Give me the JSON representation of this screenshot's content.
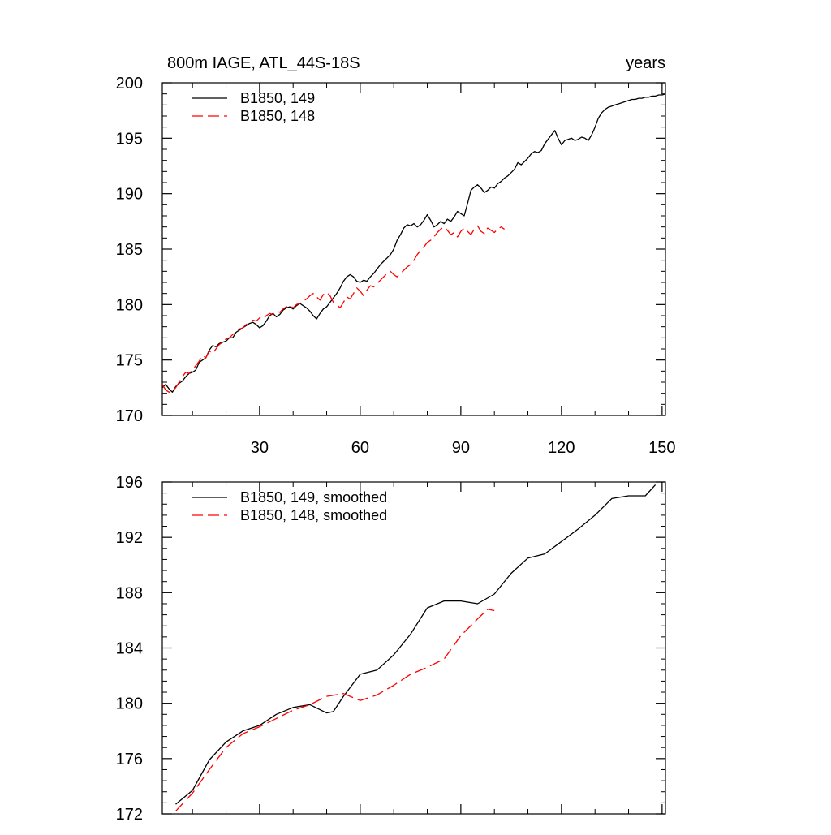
{
  "title_left": "800m IAGE, ATL_44S-18S",
  "title_right": "years",
  "colors": {
    "series_149": "#000000",
    "series_148": "#ff0000"
  },
  "chart_data": [
    {
      "type": "line",
      "xlabel": "",
      "ylabel": "",
      "xlim": [
        1,
        151
      ],
      "ylim": [
        170,
        200
      ],
      "xticks": [
        30,
        60,
        90,
        120,
        150
      ],
      "yticks": [
        170,
        175,
        180,
        185,
        190,
        195,
        200
      ],
      "grid": false,
      "legend_position": "top-left",
      "series": [
        {
          "name": "B1850, 149",
          "style": "solid",
          "x": [
            1,
            2,
            3,
            4,
            5,
            6,
            7,
            8,
            9,
            10,
            11,
            12,
            13,
            14,
            15,
            16,
            17,
            18,
            19,
            20,
            21,
            22,
            23,
            24,
            25,
            26,
            27,
            28,
            29,
            30,
            31,
            32,
            33,
            34,
            35,
            36,
            37,
            38,
            39,
            40,
            41,
            42,
            43,
            44,
            45,
            46,
            47,
            48,
            49,
            50,
            51,
            52,
            53,
            54,
            55,
            56,
            57,
            58,
            59,
            60,
            61,
            62,
            63,
            64,
            65,
            66,
            67,
            68,
            69,
            70,
            71,
            72,
            73,
            74,
            75,
            76,
            77,
            78,
            79,
            80,
            81,
            82,
            83,
            84,
            85,
            86,
            87,
            88,
            89,
            90,
            91,
            92,
            93,
            94,
            95,
            96,
            97,
            98,
            99,
            100,
            101,
            102,
            103,
            104,
            105,
            106,
            107,
            108,
            109,
            110,
            111,
            112,
            113,
            114,
            115,
            116,
            117,
            118,
            119,
            120,
            121,
            122,
            123,
            124,
            125,
            126,
            127,
            128,
            129,
            130,
            131,
            132,
            133,
            134,
            135,
            136,
            137,
            138,
            139,
            140,
            141,
            142,
            143,
            144,
            145,
            146,
            147,
            148,
            149,
            150,
            151
          ],
          "values": [
            172.5,
            172.8,
            172.4,
            172.1,
            172.6,
            172.9,
            173.1,
            173.5,
            173.8,
            173.9,
            174.1,
            174.8,
            175.0,
            175.2,
            175.9,
            176.3,
            176.2,
            176.5,
            176.6,
            176.7,
            177.0,
            177.0,
            177.5,
            177.7,
            177.9,
            178.1,
            178.3,
            178.4,
            178.2,
            177.9,
            178.1,
            178.5,
            179.0,
            179.2,
            178.9,
            179.1,
            179.5,
            179.7,
            179.8,
            179.6,
            179.9,
            180.1,
            179.9,
            179.7,
            179.4,
            179.0,
            178.7,
            179.2,
            179.6,
            179.8,
            180.2,
            180.6,
            181.0,
            181.5,
            182.1,
            182.5,
            182.7,
            182.5,
            182.1,
            182.0,
            182.2,
            182.1,
            182.5,
            182.8,
            183.2,
            183.6,
            183.9,
            184.2,
            184.5,
            185.0,
            185.8,
            186.3,
            186.9,
            187.2,
            187.1,
            187.3,
            187.0,
            187.2,
            187.6,
            188.1,
            187.6,
            187.0,
            187.2,
            187.5,
            187.3,
            187.7,
            187.5,
            187.9,
            188.4,
            188.2,
            188.0,
            189.1,
            190.3,
            190.6,
            190.8,
            190.5,
            190.1,
            190.3,
            190.6,
            190.5,
            190.9,
            191.1,
            191.4,
            191.6,
            191.9,
            192.2,
            192.8,
            192.6,
            192.9,
            193.2,
            193.6,
            193.8,
            193.7,
            193.9,
            194.5,
            194.9,
            195.3,
            195.7,
            195.0,
            194.4,
            194.8,
            194.9,
            195.0,
            194.8,
            194.9,
            195.1,
            195.0,
            194.8,
            195.3,
            196.0,
            196.8,
            197.3,
            197.6,
            197.8,
            197.9,
            198.0,
            198.1,
            198.2,
            198.3,
            198.4,
            198.5,
            198.5,
            198.6,
            198.6,
            198.7,
            198.7,
            198.8,
            198.8,
            198.9,
            198.9,
            199.0
          ]
        },
        {
          "name": "B1850, 148",
          "style": "dashed",
          "x": [
            1,
            2,
            3,
            4,
            5,
            6,
            7,
            8,
            9,
            10,
            11,
            12,
            13,
            14,
            15,
            16,
            17,
            18,
            19,
            20,
            21,
            22,
            23,
            24,
            25,
            26,
            27,
            28,
            29,
            30,
            31,
            32,
            33,
            34,
            35,
            36,
            37,
            38,
            39,
            40,
            41,
            42,
            43,
            44,
            45,
            46,
            47,
            48,
            49,
            50,
            51,
            52,
            53,
            54,
            55,
            56,
            57,
            58,
            59,
            60,
            61,
            62,
            63,
            64,
            65,
            66,
            67,
            68,
            69,
            70,
            71,
            72,
            73,
            74,
            75,
            76,
            77,
            78,
            79,
            80,
            81,
            82,
            83,
            84,
            85,
            86,
            87,
            88,
            89,
            90,
            91,
            92,
            93,
            94,
            95,
            96,
            97,
            98,
            99,
            100,
            101,
            102,
            103
          ],
          "values": [
            172.8,
            172.3,
            172.1,
            172.2,
            172.5,
            173.0,
            173.5,
            173.9,
            173.8,
            174.1,
            174.5,
            174.9,
            175.4,
            175.2,
            175.8,
            175.6,
            176.0,
            176.4,
            176.6,
            176.9,
            177.0,
            177.3,
            177.5,
            177.8,
            177.9,
            178.2,
            178.4,
            178.6,
            178.5,
            178.8,
            178.7,
            179.0,
            179.2,
            179.1,
            179.4,
            179.3,
            179.6,
            179.8,
            179.9,
            179.7,
            180.0,
            180.1,
            180.3,
            180.5,
            180.8,
            181.0,
            180.7,
            180.4,
            180.9,
            181.1,
            180.8,
            180.2,
            180.0,
            179.7,
            180.2,
            180.7,
            180.5,
            181.0,
            181.5,
            181.2,
            180.8,
            181.3,
            181.7,
            181.6,
            181.9,
            182.2,
            182.5,
            182.8,
            183.0,
            182.7,
            182.5,
            182.8,
            183.1,
            183.4,
            183.6,
            184.0,
            184.5,
            184.9,
            185.2,
            185.6,
            185.8,
            186.1,
            186.5,
            186.8,
            187.0,
            186.7,
            186.3,
            186.5,
            186.1,
            186.6,
            186.9,
            186.6,
            186.3,
            186.8,
            187.1,
            186.6,
            186.4,
            186.9,
            186.7,
            186.5,
            186.8,
            187.0,
            186.8
          ]
        }
      ]
    },
    {
      "type": "line",
      "xlabel": "",
      "ylabel": "",
      "xlim": [
        1,
        151
      ],
      "ylim": [
        172,
        196
      ],
      "xticks": [
        30,
        60,
        90,
        120,
        150
      ],
      "yticks": [
        172,
        176,
        180,
        184,
        188,
        192,
        196
      ],
      "grid": false,
      "legend_position": "top-left",
      "series": [
        {
          "name": "B1850, 149, smoothed",
          "style": "solid",
          "x": [
            5,
            10,
            15,
            20,
            25,
            30,
            35,
            40,
            45,
            50,
            52,
            55,
            60,
            65,
            70,
            75,
            80,
            85,
            90,
            95,
            100,
            105,
            110,
            115,
            120,
            125,
            130,
            135,
            140,
            145,
            148
          ],
          "values": [
            172.7,
            173.7,
            175.9,
            177.2,
            178.0,
            178.4,
            179.2,
            179.7,
            179.9,
            179.3,
            179.4,
            180.5,
            182.1,
            182.4,
            183.5,
            185.0,
            186.9,
            187.4,
            187.4,
            187.2,
            187.9,
            189.4,
            190.5,
            190.8,
            191.7,
            192.6,
            193.6,
            194.8,
            195.0,
            195.0,
            195.8
          ]
        },
        {
          "name": "B1850, 148, smoothed",
          "style": "dashed",
          "x": [
            5,
            10,
            15,
            20,
            25,
            30,
            35,
            40,
            45,
            50,
            55,
            60,
            65,
            70,
            75,
            80,
            85,
            90,
            95,
            98,
            100
          ],
          "values": [
            172.2,
            173.5,
            175.2,
            176.8,
            177.8,
            178.3,
            178.9,
            179.5,
            179.9,
            180.5,
            180.7,
            180.2,
            180.6,
            181.3,
            182.1,
            182.6,
            183.2,
            184.9,
            186.1,
            186.8,
            186.7
          ]
        }
      ]
    }
  ]
}
